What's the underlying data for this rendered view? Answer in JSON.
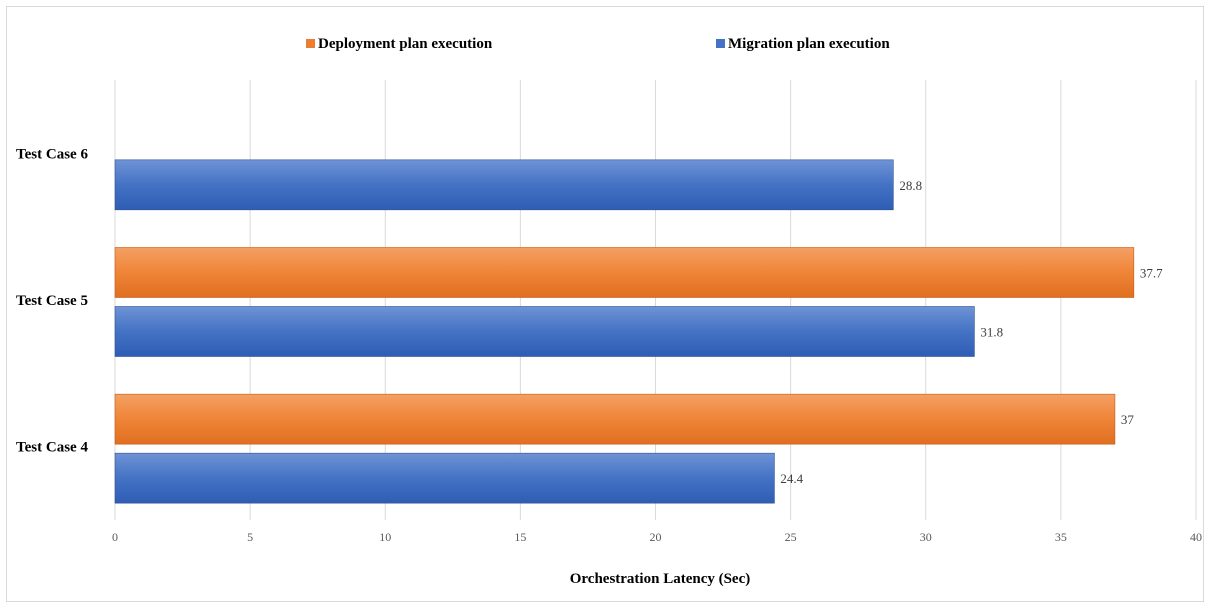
{
  "chart_data": {
    "type": "bar",
    "orientation": "horizontal",
    "categories": [
      "Test Case 6",
      "Test Case 5",
      "Test Case 4"
    ],
    "series": [
      {
        "name": "Deployment plan execution",
        "color": "#ED7D31",
        "values": [
          null,
          37.7,
          37
        ]
      },
      {
        "name": "Migration plan execution",
        "color": "#4472C4",
        "values": [
          28.8,
          31.8,
          24.4
        ]
      }
    ],
    "xlabel": "Orchestration Latency (Sec)",
    "ylabel": "",
    "xlim": [
      0,
      40
    ],
    "xticks": [
      0,
      5,
      10,
      15,
      20,
      25,
      30,
      35,
      40
    ],
    "grid": "vertical",
    "legend_position": "top"
  }
}
